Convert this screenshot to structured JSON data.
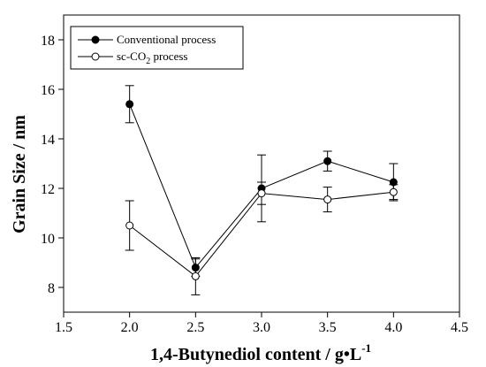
{
  "chart_data": {
    "type": "line",
    "xlabel": "1,4-Butynediol content / g•L",
    "xlabel_superscript": "-1",
    "ylabel": "Grain Size / nm",
    "xlim": [
      1.5,
      4.5
    ],
    "ylim": [
      7,
      19
    ],
    "x_ticks": [
      1.5,
      2.0,
      2.5,
      3.0,
      3.5,
      4.0,
      4.5
    ],
    "x_tick_labels": [
      "1.5",
      "2.0",
      "2.5",
      "3.0",
      "3.5",
      "4.0",
      "4.5"
    ],
    "y_ticks": [
      8,
      10,
      12,
      14,
      16,
      18
    ],
    "y_tick_labels": [
      "8",
      "10",
      "12",
      "14",
      "16",
      "18"
    ],
    "grid": false,
    "legend_position": "top-left",
    "x": [
      2.0,
      2.5,
      3.0,
      3.5,
      4.0
    ],
    "series": [
      {
        "name": "Conventional process",
        "marker": "filled-circle",
        "color": "#000000",
        "values": [
          15.4,
          8.8,
          12.0,
          13.1,
          12.25
        ],
        "error": [
          0.75,
          0.35,
          1.35,
          0.4,
          0.75
        ]
      },
      {
        "name_prefix": "sc-CO",
        "name_subscript": "2",
        "name_suffix": " process",
        "marker": "open-circle",
        "color": "#000000",
        "values": [
          10.5,
          8.45,
          11.8,
          11.55,
          11.85
        ],
        "error": [
          1.0,
          0.75,
          0.45,
          0.5,
          0.3
        ]
      }
    ]
  }
}
